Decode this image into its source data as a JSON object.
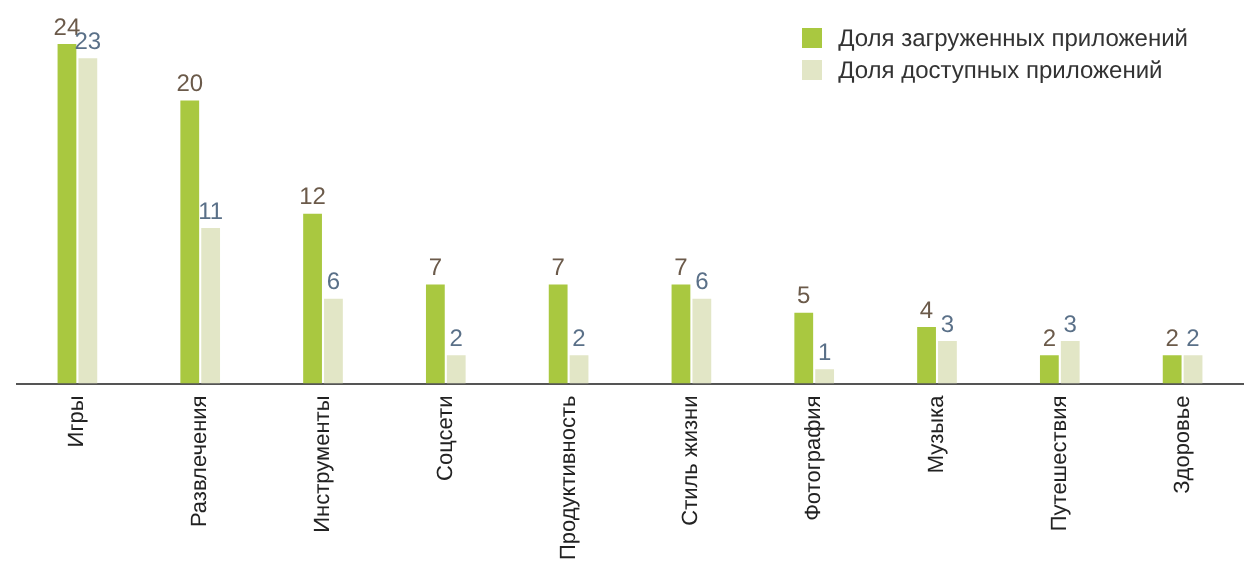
{
  "chart_data": {
    "type": "bar",
    "categories": [
      "Игры",
      "Развлечения",
      "Инструменты",
      "Соцсети",
      "Продуктивность",
      "Стиль жизни",
      "Фотография",
      "Музыка",
      "Путешествия",
      "Здоровье"
    ],
    "series": [
      {
        "name": "Доля загруженных приложений",
        "color": "#a9c840",
        "values": [
          24,
          20,
          12,
          7,
          7,
          7,
          5,
          4,
          2,
          2
        ]
      },
      {
        "name": "Доля доступных приложений",
        "color": "#e2e6c6",
        "values": [
          23,
          11,
          6,
          2,
          2,
          6,
          1,
          3,
          3,
          2
        ]
      }
    ],
    "data_labels": true,
    "legend": "top right",
    "grid": false
  }
}
